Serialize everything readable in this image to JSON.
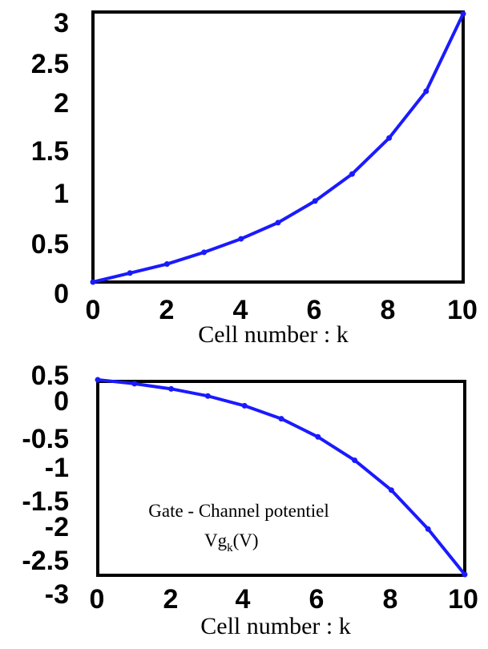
{
  "chart_data": [
    {
      "type": "line",
      "title": "",
      "xlabel": "Cell number : k",
      "ylabel": "",
      "annotation": "",
      "xlim": [
        0,
        10
      ],
      "ylim": [
        0,
        3
      ],
      "x_ticks": [
        0,
        2,
        4,
        6,
        8,
        10
      ],
      "x_tick_labels": [
        "0",
        "2",
        "4",
        "6",
        "8",
        "10"
      ],
      "y_ticks": [
        0,
        0.5,
        1,
        1.5,
        2,
        2.5,
        3
      ],
      "y_tick_labels": [
        "0",
        "0.5",
        "1",
        "1.5",
        "2",
        "2.5",
        "3"
      ],
      "grid": false,
      "legend": "none",
      "color": "#1a1aff",
      "series": [
        {
          "x": [
            0,
            1,
            2,
            3,
            4,
            5,
            6,
            7,
            8,
            9,
            10
          ],
          "y": [
            0,
            0.1,
            0.2,
            0.33,
            0.48,
            0.66,
            0.9,
            1.2,
            1.6,
            2.12,
            2.98
          ]
        }
      ]
    },
    {
      "type": "line",
      "title": "",
      "xlabel": "Cell number : k",
      "ylabel": "",
      "annotation": "Gate - Channel potentiel",
      "annotation_unit_main": "Vg",
      "annotation_unit_sub": "k",
      "annotation_unit_tail": "(V)",
      "xlim": [
        0,
        10
      ],
      "ylim": [
        -2.6,
        0.4
      ],
      "x_ticks": [
        0,
        2,
        4,
        6,
        8,
        10
      ],
      "x_tick_labels": [
        "0",
        "2",
        "4",
        "6",
        "8",
        "10"
      ],
      "y_ticks": [
        0.5,
        0,
        -0.5,
        -1,
        -1.5,
        -2,
        -2.5,
        -3
      ],
      "y_tick_labels": [
        "0.5",
        "0",
        "-0.5",
        "-1",
        "-1.5",
        "-2",
        "-2.5",
        "-3"
      ],
      "grid": false,
      "legend": "none",
      "color": "#1a1aff",
      "series": [
        {
          "x": [
            0,
            1,
            2,
            3,
            4,
            5,
            6,
            7,
            8,
            9,
            10
          ],
          "y": [
            0.4,
            0.34,
            0.26,
            0.15,
            0.0,
            -0.2,
            -0.48,
            -0.84,
            -1.3,
            -1.9,
            -2.6
          ]
        }
      ]
    }
  ]
}
